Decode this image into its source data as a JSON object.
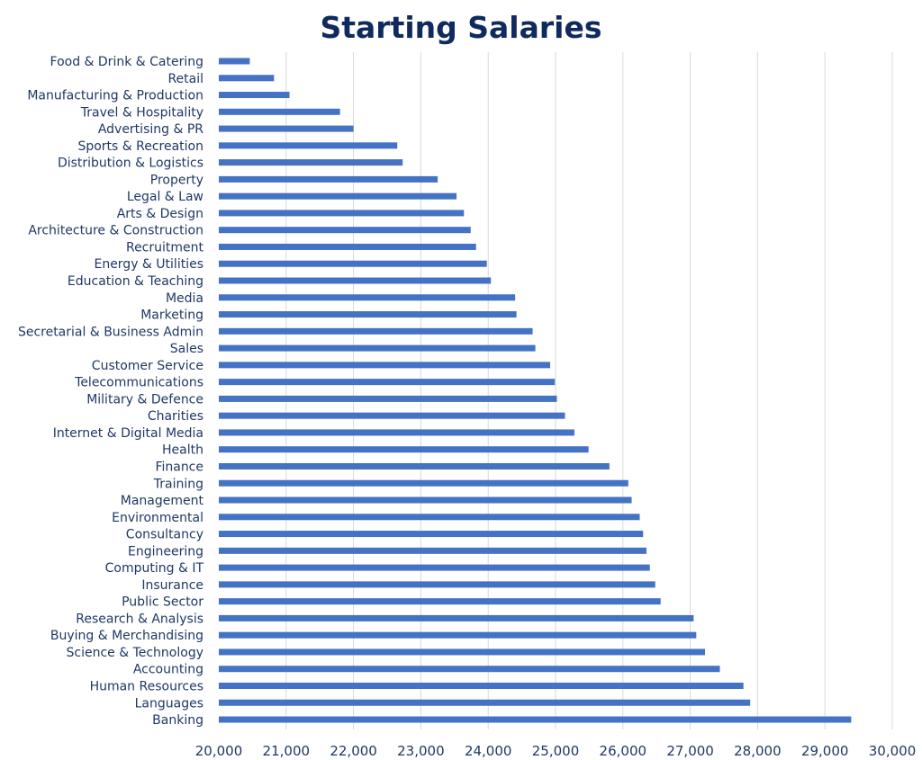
{
  "chart_data": {
    "type": "bar",
    "orientation": "horizontal",
    "title": "Starting Salaries",
    "xlabel": "",
    "ylabel": "",
    "xlim": [
      20000,
      30000
    ],
    "x_ticks": [
      20000,
      21000,
      22000,
      23000,
      24000,
      25000,
      26000,
      27000,
      28000,
      29000,
      30000
    ],
    "x_tick_labels": [
      "20,000",
      "21,000",
      "22,000",
      "23,000",
      "24,000",
      "25,000",
      "26,000",
      "27,000",
      "28,000",
      "29,000",
      "30,000"
    ],
    "grid": "vertical",
    "legend": "none",
    "bar_color": "#4472C4",
    "text_color": "#1F3864",
    "title_color": "#0F2A5E",
    "grid_color": "#D9D9D9",
    "categories": [
      "Food & Drink & Catering",
      "Retail",
      "Manufacturing & Production",
      "Travel & Hospitality",
      "Advertising & PR",
      "Sports & Recreation",
      "Distribution & Logistics",
      "Property",
      "Legal & Law",
      "Arts & Design",
      "Architecture & Construction",
      "Recruitment",
      "Energy & Utilities",
      "Education & Teaching",
      "Media",
      "Marketing",
      "Secretarial & Business Admin",
      "Sales",
      "Customer Service",
      "Telecommunications",
      "Military & Defence",
      "Charities",
      "Internet & Digital Media",
      "Health",
      "Finance",
      "Training",
      "Management",
      "Environmental",
      "Consultancy",
      "Engineering",
      "Computing & IT",
      "Insurance",
      "Public Sector",
      "Research & Analysis",
      "Buying & Merchandising",
      "Science & Technology",
      "Accounting",
      "Human Resources",
      "Languages",
      "Banking"
    ],
    "values": [
      20460,
      20820,
      21050,
      21800,
      22000,
      22650,
      22730,
      23250,
      23530,
      23640,
      23740,
      23820,
      23980,
      24040,
      24400,
      24420,
      24660,
      24700,
      24920,
      24990,
      25020,
      25140,
      25280,
      25490,
      25800,
      26080,
      26130,
      26250,
      26300,
      26350,
      26400,
      26480,
      26560,
      27050,
      27090,
      27220,
      27440,
      27790,
      27890,
      29390
    ]
  }
}
